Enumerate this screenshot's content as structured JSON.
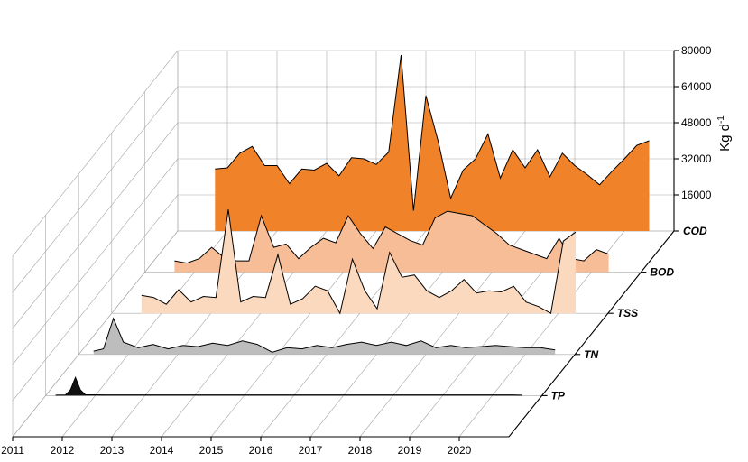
{
  "chart_data": {
    "type": "area",
    "title": "",
    "xlabel": "",
    "ylabel": "Kg d",
    "ylabel_superscript": "-1",
    "x_ticks": [
      "2011",
      "2012",
      "2013",
      "2014",
      "2015",
      "2016",
      "2017",
      "2018",
      "2019",
      "2020"
    ],
    "xlim": [
      2011,
      2021
    ],
    "ylim": [
      0,
      80000
    ],
    "y_ticks": [
      "16000",
      "32000",
      "48000",
      "64000",
      "80000"
    ],
    "grid": true,
    "view": "3d-waterfall",
    "series": [
      {
        "name": "COD",
        "color": "#f0822a",
        "x": [
          2011.75,
          2012.0,
          2012.25,
          2012.5,
          2012.75,
          2013.0,
          2013.25,
          2013.5,
          2013.75,
          2014.0,
          2014.25,
          2014.5,
          2014.75,
          2015.0,
          2015.25,
          2015.5,
          2015.75,
          2016.0,
          2016.25,
          2016.5,
          2016.75,
          2017.0,
          2017.25,
          2017.5,
          2017.75,
          2018.0,
          2018.25,
          2018.5,
          2018.75,
          2019.0,
          2019.25,
          2019.5,
          2019.75,
          2020.0,
          2020.25,
          2020.5
        ],
        "values": [
          27500,
          28000,
          34500,
          37500,
          29000,
          29000,
          21000,
          27500,
          27000,
          30000,
          24500,
          32500,
          32000,
          29500,
          35000,
          78000,
          9000,
          60000,
          39500,
          14500,
          27000,
          32000,
          43000,
          23500,
          36000,
          28000,
          36000,
          24000,
          34500,
          29000,
          25000,
          20500,
          26500,
          32000,
          38000,
          40000
        ]
      },
      {
        "name": "BOD",
        "color": "#f6bd97",
        "x": [
          2011.6,
          2011.85,
          2012.1,
          2012.35,
          2012.6,
          2012.85,
          2013.1,
          2013.35,
          2013.6,
          2013.85,
          2014.1,
          2014.35,
          2014.6,
          2014.85,
          2015.1,
          2015.35,
          2015.6,
          2015.85,
          2016.1,
          2016.35,
          2016.6,
          2016.85,
          2017.1,
          2017.35,
          2017.6,
          2017.85,
          2018.1,
          2018.35,
          2018.6,
          2018.85,
          2019.1,
          2019.35,
          2019.6,
          2019.85,
          2020.1,
          2020.35
        ],
        "values": [
          5000,
          4000,
          6000,
          11000,
          6500,
          5000,
          5000,
          25000,
          11000,
          12500,
          6000,
          11000,
          15000,
          13000,
          25000,
          17000,
          10500,
          20000,
          17000,
          14000,
          12000,
          24000,
          27000,
          26000,
          25000,
          21000,
          17000,
          12000,
          10000,
          8000,
          6000,
          15000,
          6000,
          5000,
          10000,
          8000
        ]
      },
      {
        "name": "TSS",
        "color": "#fbd9bf",
        "x": [
          2011.6,
          2011.85,
          2012.1,
          2012.35,
          2012.6,
          2012.85,
          2013.1,
          2013.35,
          2013.6,
          2013.85,
          2014.1,
          2014.35,
          2014.6,
          2014.85,
          2015.1,
          2015.35,
          2015.6,
          2015.85,
          2016.1,
          2016.35,
          2016.6,
          2016.85,
          2017.1,
          2017.35,
          2017.6,
          2017.85,
          2018.1,
          2018.35,
          2018.6,
          2018.85,
          2019.1,
          2019.35,
          2019.6,
          2019.85,
          2020.1,
          2020.35
        ],
        "values": [
          8000,
          7000,
          4000,
          10500,
          5000,
          7500,
          7000,
          46000,
          5000,
          7500,
          7000,
          26000,
          4000,
          6500,
          12000,
          10000,
          0,
          24000,
          10000,
          2000,
          27000,
          16000,
          17000,
          10000,
          7000,
          10000,
          15000,
          9000,
          10000,
          9500,
          12000,
          5000,
          3000,
          0,
          32000,
          36000
        ]
      },
      {
        "name": "TN",
        "color": "#bdbdbd",
        "x": [
          2011.3,
          2011.5,
          2011.7,
          2011.9,
          2012.2,
          2012.5,
          2012.8,
          2013.1,
          2013.4,
          2013.7,
          2014.0,
          2014.3,
          2014.6,
          2014.9,
          2015.2,
          2015.5,
          2015.8,
          2016.1,
          2016.4,
          2016.7,
          2017.0,
          2017.3,
          2017.6,
          2017.9,
          2018.2,
          2018.5,
          2018.8,
          2019.1,
          2019.4,
          2019.7,
          2020.0,
          2020.3,
          2020.6
        ],
        "values": [
          1500,
          2500,
          16000,
          5500,
          3000,
          4500,
          2500,
          4000,
          3500,
          5000,
          4000,
          6000,
          4500,
          1000,
          3000,
          2500,
          4000,
          3000,
          4500,
          5500,
          4000,
          5500,
          4000,
          6000,
          3000,
          4000,
          3000,
          3500,
          4000,
          3500,
          3000,
          3000,
          2000
        ]
      },
      {
        "name": "TP",
        "color": "#111111",
        "x": [
          2011.2,
          2011.4,
          2011.5,
          2011.6,
          2011.7,
          2011.8,
          2012.2,
          2012.8,
          2013.4,
          2014.0,
          2014.6,
          2015.2,
          2015.8,
          2016.4,
          2017.0,
          2017.6,
          2018.2,
          2018.8,
          2019.4,
          2020.0,
          2020.4,
          2020.6
        ],
        "values": [
          200,
          300,
          2500,
          8000,
          2500,
          400,
          300,
          300,
          300,
          300,
          300,
          300,
          300,
          300,
          300,
          300,
          300,
          300,
          300,
          300,
          300,
          200
        ]
      }
    ]
  }
}
